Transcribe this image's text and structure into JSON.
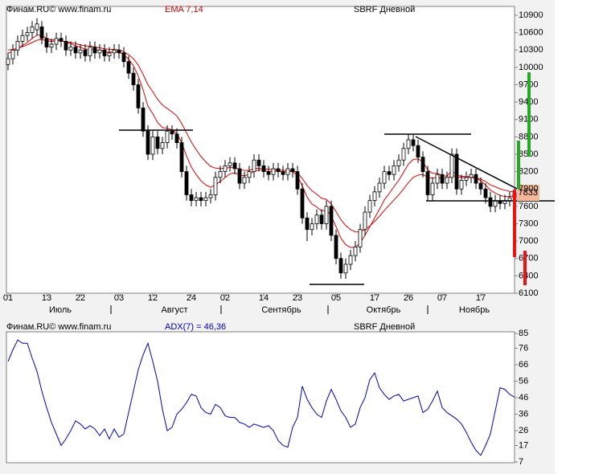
{
  "chart_data": [
    {
      "type": "candlestick",
      "source": "Финам.RU©  www.finam.ru",
      "indicator": "EMA 7,14",
      "title": "SBRF Дневной",
      "categories": [
        "01",
        null,
        null,
        null,
        null,
        null,
        null,
        null,
        "13",
        null,
        null,
        null,
        null,
        null,
        null,
        "22",
        null,
        null,
        null,
        null,
        null,
        null,
        null,
        "03",
        null,
        null,
        null,
        null,
        null,
        null,
        "12",
        null,
        null,
        null,
        null,
        null,
        null,
        null,
        "24",
        null,
        null,
        null,
        null,
        null,
        null,
        "02",
        null,
        null,
        null,
        null,
        null,
        null,
        null,
        "14",
        null,
        null,
        null,
        null,
        null,
        null,
        "23",
        null,
        null,
        null,
        null,
        null,
        null,
        null,
        "05",
        null,
        null,
        null,
        null,
        null,
        null,
        null,
        "17",
        null,
        null,
        null,
        null,
        null,
        null,
        "26",
        null,
        null,
        null,
        null,
        null,
        null,
        "07",
        null,
        null,
        null,
        null,
        null,
        null,
        null,
        "17",
        null,
        null,
        null,
        null,
        null,
        null,
        null
      ],
      "months": [
        "Июль",
        "Август",
        "Сентябрь",
        "Октябрь",
        "Ноябрь"
      ],
      "open": [
        10050,
        10150,
        10300,
        10450,
        10550,
        10600,
        10650,
        10700,
        10500,
        10350,
        10400,
        10500,
        10450,
        10300,
        10350,
        10250,
        10300,
        10200,
        10350,
        10250,
        10300,
        10200,
        10250,
        10300,
        10250,
        10100,
        9900,
        9700,
        9300,
        8900,
        8500,
        8800,
        8600,
        8700,
        8900,
        8850,
        8700,
        8200,
        7800,
        7700,
        7750,
        7700,
        7750,
        7800,
        8100,
        8200,
        8300,
        8350,
        8250,
        8000,
        8100,
        8200,
        8400,
        8300,
        8200,
        8150,
        8250,
        8200,
        8150,
        8250,
        8200,
        7900,
        7400,
        7200,
        7300,
        7450,
        7300,
        7600,
        7100,
        6700,
        6450,
        6600,
        6750,
        6900,
        7200,
        7500,
        7700,
        7850,
        8000,
        8200,
        8150,
        8300,
        8400,
        8600,
        8750,
        8650,
        8450,
        8200,
        7800,
        8000,
        8150,
        8000,
        8100,
        8500,
        7900,
        8050,
        8100,
        8150,
        8000,
        7900,
        7750,
        7600,
        7700,
        7650,
        7700,
        7750
      ],
      "high": [
        10250,
        10400,
        10550,
        10650,
        10700,
        10800,
        10850,
        10800,
        10600,
        10500,
        10600,
        10600,
        10550,
        10450,
        10450,
        10400,
        10400,
        10450,
        10450,
        10400,
        10400,
        10350,
        10400,
        10400,
        10350,
        10200,
        10000,
        9800,
        9400,
        9000,
        8900,
        8900,
        8800,
        9000,
        9000,
        8950,
        8800,
        8300,
        7900,
        7850,
        7850,
        7850,
        7900,
        8200,
        8300,
        8400,
        8450,
        8450,
        8350,
        8200,
        8300,
        8500,
        8500,
        8400,
        8300,
        8350,
        8350,
        8300,
        8350,
        8350,
        8300,
        8000,
        7500,
        7400,
        7550,
        7550,
        7700,
        7700,
        7200,
        6800,
        6700,
        6850,
        7000,
        7300,
        7600,
        7800,
        7950,
        8100,
        8300,
        8300,
        8400,
        8500,
        8700,
        8850,
        8850,
        8750,
        8550,
        8300,
        8100,
        8250,
        8250,
        8200,
        8600,
        8600,
        8150,
        8200,
        8250,
        8250,
        8100,
        8000,
        7850,
        7800,
        7800,
        7800,
        7850,
        7900
      ],
      "low": [
        9950,
        10050,
        10200,
        10350,
        10450,
        10500,
        10550,
        10400,
        10250,
        10250,
        10300,
        10350,
        10200,
        10200,
        10150,
        10150,
        10100,
        10100,
        10150,
        10150,
        10100,
        10100,
        10150,
        10150,
        10000,
        9800,
        9600,
        9200,
        8800,
        8400,
        8400,
        8500,
        8500,
        8600,
        8750,
        8600,
        8100,
        7700,
        7600,
        7600,
        7600,
        7600,
        7650,
        7700,
        8000,
        8100,
        8200,
        8150,
        7900,
        7900,
        8000,
        8100,
        8200,
        8100,
        8050,
        8050,
        8100,
        8050,
        8050,
        8100,
        7800,
        7300,
        7000,
        7100,
        7200,
        7200,
        7200,
        7000,
        6600,
        6350,
        6350,
        6500,
        6650,
        6800,
        7100,
        7400,
        7600,
        7750,
        7900,
        8050,
        8050,
        8200,
        8300,
        8500,
        8550,
        8350,
        8100,
        7700,
        7700,
        7900,
        7900,
        7900,
        8000,
        7800,
        7800,
        7950,
        8000,
        7900,
        7800,
        7650,
        7500,
        7500,
        7550,
        7550,
        7600,
        7650
      ],
      "close": [
        10150,
        10300,
        10450,
        10550,
        10600,
        10700,
        10750,
        10500,
        10350,
        10400,
        10500,
        10450,
        10300,
        10350,
        10250,
        10300,
        10200,
        10350,
        10250,
        10300,
        10200,
        10250,
        10300,
        10250,
        10100,
        9900,
        9700,
        9300,
        8900,
        8500,
        8800,
        8600,
        8700,
        8900,
        8850,
        8700,
        8200,
        7800,
        7700,
        7750,
        7700,
        7750,
        7800,
        8100,
        8200,
        8300,
        8350,
        8250,
        8000,
        8100,
        8200,
        8400,
        8300,
        8200,
        8150,
        8250,
        8200,
        8150,
        8250,
        8200,
        7900,
        7400,
        7200,
        7300,
        7450,
        7300,
        7600,
        7100,
        6700,
        6450,
        6600,
        6750,
        6900,
        7200,
        7500,
        7700,
        7850,
        8000,
        8200,
        8150,
        8300,
        8400,
        8600,
        8750,
        8650,
        8450,
        8200,
        7800,
        8000,
        8150,
        8000,
        8100,
        8500,
        7900,
        8050,
        8100,
        8150,
        8000,
        7900,
        7750,
        7600,
        7700,
        7650,
        7700,
        7750,
        7833
      ],
      "up_color": "#ffffff",
      "down_color": "#000000",
      "series": [
        {
          "color": "#e00000",
          "values": [
            10250,
            10270,
            10320,
            10380,
            10430,
            10500,
            10560,
            10550,
            10500,
            10470,
            10480,
            10470,
            10430,
            10410,
            10370,
            10350,
            10310,
            10320,
            10300,
            10300,
            10270,
            10260,
            10270,
            10265,
            10220,
            10140,
            10030,
            9850,
            9610,
            9330,
            9200,
            9050,
            8960,
            8950,
            8920,
            8860,
            8700,
            8470,
            8280,
            8150,
            8040,
            7970,
            7930,
            7970,
            8030,
            8100,
            8160,
            8180,
            8140,
            8130,
            8150,
            8210,
            8230,
            8220,
            8200,
            8210,
            8210,
            8190,
            8200,
            8200,
            8130,
            7950,
            7760,
            7640,
            7590,
            7520,
            7540,
            7430,
            7250,
            7050,
            6940,
            6890,
            6890,
            6970,
            7100,
            7250,
            7400,
            7550,
            7710,
            7820,
            7940,
            8050,
            8190,
            8330,
            8410,
            8420,
            8370,
            8230,
            8170,
            8170,
            8130,
            8120,
            8220,
            8140,
            8120,
            8110,
            8120,
            8090,
            8040,
            7970,
            7880,
            7830,
            7790,
            7770,
            7770,
            7785
          ]
        },
        {
          "color": "#e00000",
          "values": [
            10300,
            10310,
            10330,
            10360,
            10390,
            10430,
            10470,
            10480,
            10460,
            10450,
            10460,
            10460,
            10440,
            10430,
            10410,
            10390,
            10370,
            10370,
            10350,
            10340,
            10320,
            10310,
            10310,
            10300,
            10270,
            10220,
            10150,
            10040,
            9880,
            9700,
            9580,
            9450,
            9350,
            9290,
            9230,
            9160,
            9030,
            8870,
            8710,
            8580,
            8460,
            8370,
            8290,
            8260,
            8250,
            8260,
            8270,
            8270,
            8240,
            8220,
            8220,
            8250,
            8260,
            8250,
            8240,
            8240,
            8230,
            8220,
            8220,
            8220,
            8180,
            8080,
            7960,
            7870,
            7810,
            7740,
            7720,
            7640,
            7510,
            7370,
            7270,
            7200,
            7160,
            7160,
            7200,
            7260,
            7340,
            7430,
            7530,
            7620,
            7710,
            7800,
            7900,
            8010,
            8100,
            8140,
            8150,
            8100,
            8090,
            8100,
            8080,
            8080,
            8140,
            8110,
            8100,
            8100,
            8100,
            8090,
            8070,
            8030,
            7970,
            7940,
            7900,
            7880,
            7860,
            7850
          ]
        }
      ],
      "ylim": [
        6100,
        10900
      ],
      "yticks": [
        6100,
        6400,
        6700,
        7000,
        7300,
        7600,
        7900,
        8200,
        8500,
        8800,
        9100,
        9400,
        9700,
        10000,
        10300,
        10600,
        10900
      ],
      "last_value": 7833
    },
    {
      "type": "line",
      "source": "Финам.RU©  www.finam.ru",
      "indicator": "ADX(7) = 46,36",
      "title": "SBRF Дневной",
      "series": [
        {
          "color": "#0000cc",
          "values": [
            68,
            75,
            81,
            79,
            79,
            70,
            62,
            50,
            40,
            31,
            24,
            17,
            21,
            26,
            32,
            30,
            27,
            29,
            27,
            23,
            27,
            21,
            27,
            22,
            24,
            37,
            50,
            63,
            72,
            79,
            68,
            56,
            39,
            26,
            28,
            36,
            39,
            43,
            48,
            47,
            40,
            37,
            36,
            42,
            40,
            35,
            34,
            34,
            31,
            30,
            28,
            30,
            29,
            28,
            29,
            26,
            20,
            17,
            16,
            28,
            34,
            53,
            45,
            40,
            36,
            34,
            44,
            51,
            45,
            38,
            34,
            28,
            30,
            40,
            46,
            57,
            61,
            52,
            48,
            45,
            47,
            48,
            44,
            45,
            46,
            47,
            37,
            39,
            44,
            50,
            40,
            37,
            35,
            33,
            30,
            25,
            19,
            14,
            11,
            17,
            24,
            38,
            52,
            51,
            48,
            46.36
          ]
        }
      ],
      "ylim": [
        7,
        85
      ],
      "yticks": [
        7,
        17,
        26,
        36,
        46,
        56,
        66,
        76,
        85
      ]
    }
  ]
}
